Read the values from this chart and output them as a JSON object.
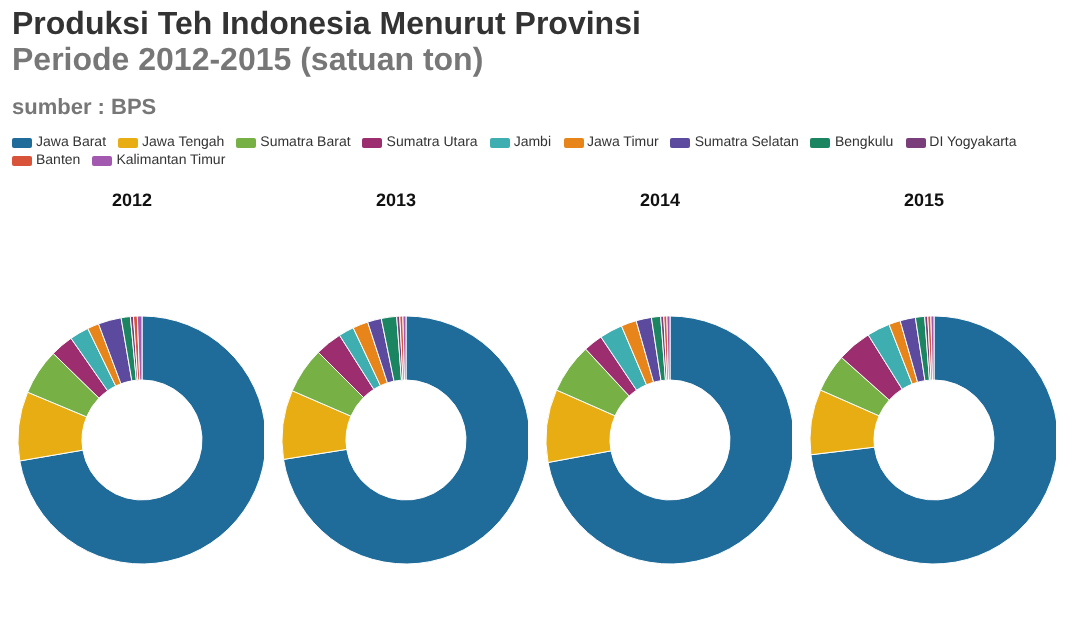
{
  "chart_data": [
    {
      "type": "donut",
      "title": "2012",
      "annotations": [
        "Produksi Teh Indonesia Menurut Provinsi",
        "Periode 2012-2015 (satuan ton)",
        "sumber : BPS"
      ],
      "legend": "top",
      "categories": [
        "Jawa Barat",
        "Jawa Tengah",
        "Sumatra Barat",
        "Sumatra Utara",
        "Jambi",
        "Jawa Timur",
        "Sumatra Selatan",
        "Bengkulu",
        "DI Yogyakarta",
        "Banten",
        "Kalimantan Timur"
      ],
      "values": [
        72.3,
        9,
        6,
        3,
        2.5,
        1.5,
        3,
        1.2,
        0.4,
        0.5,
        0.6
      ],
      "colors": [
        "#1f6b9a",
        "#e8ad12",
        "#77b045",
        "#9c2d6f",
        "#3eaeb0",
        "#e7851b",
        "#5c4a9e",
        "#1a8560",
        "#7a3f7a",
        "#d9533a",
        "#a459b0"
      ]
    },
    {
      "type": "donut",
      "title": "2013",
      "values": [
        72.5,
        9,
        6,
        3.5,
        2,
        2,
        1.8,
        2,
        0.4,
        0.4,
        0.4
      ],
      "colors": [
        "#1f6b9a",
        "#e8ad12",
        "#77b045",
        "#9c2d6f",
        "#3eaeb0",
        "#e7851b",
        "#5c4a9e",
        "#1a8560",
        "#7a3f7a",
        "#d9533a",
        "#a459b0"
      ]
    },
    {
      "type": "donut",
      "title": "2014",
      "values": [
        72.1,
        9.5,
        6.5,
        2.5,
        3,
        2,
        2,
        1.2,
        0.4,
        0.4,
        0.4
      ],
      "colors": [
        "#1f6b9a",
        "#e8ad12",
        "#77b045",
        "#9c2d6f",
        "#3eaeb0",
        "#e7851b",
        "#5c4a9e",
        "#1a8560",
        "#7a3f7a",
        "#d9533a",
        "#a459b0"
      ]
    },
    {
      "type": "donut",
      "title": "2015",
      "values": [
        73.1,
        8.5,
        5,
        4.5,
        3,
        1.5,
        2,
        1.2,
        0.4,
        0.4,
        0.4
      ],
      "colors": [
        "#1f6b9a",
        "#e8ad12",
        "#77b045",
        "#9c2d6f",
        "#3eaeb0",
        "#e7851b",
        "#5c4a9e",
        "#1a8560",
        "#7a3f7a",
        "#d9533a",
        "#a459b0"
      ]
    }
  ]
}
